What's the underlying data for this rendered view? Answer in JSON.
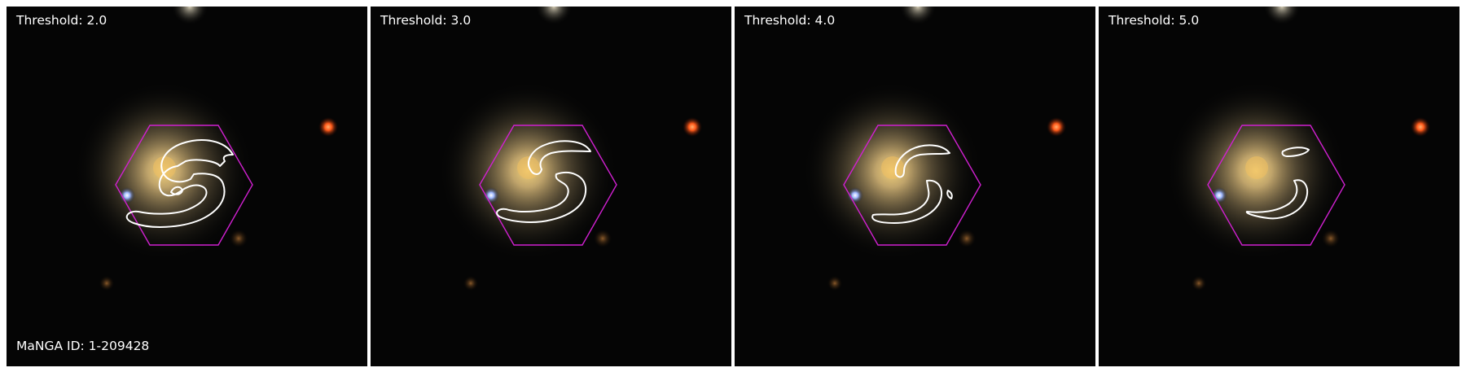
{
  "panels": [
    {
      "threshold_label": "Threshold: 2.0",
      "threshold": 2.0
    },
    {
      "threshold_label": "Threshold: 3.0",
      "threshold": 3.0
    },
    {
      "threshold_label": "Threshold: 4.0",
      "threshold": 4.0
    },
    {
      "threshold_label": "Threshold: 5.0",
      "threshold": 5.0
    }
  ],
  "manga_id_label": "MaNGA ID: 1-209428",
  "colors": {
    "background": "#050505",
    "hexagon": "#d020d0",
    "contour": "#ffffff",
    "galaxy_core": "#f0c060",
    "red_star": "#ff5a1a",
    "blue_star": "#c8d8ff"
  }
}
